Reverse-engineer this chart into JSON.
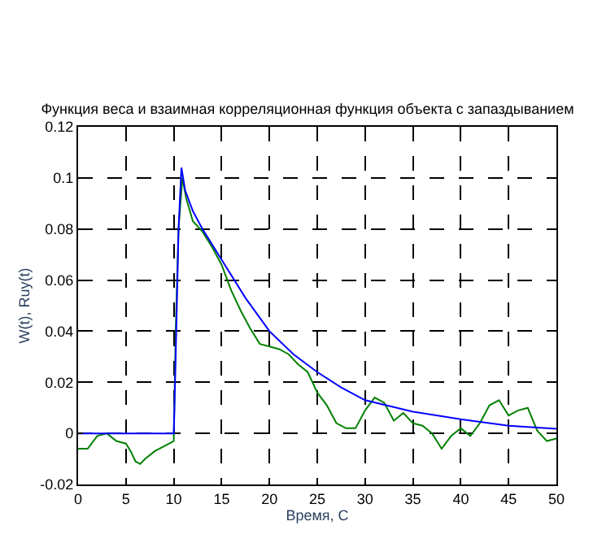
{
  "chart_data": {
    "type": "line",
    "title": "Функция веса и взаимная корреляционная функция объекта с запаздыванием",
    "xlabel": "Время, С",
    "ylabel": "W(t), Ruy(t)",
    "xlim": [
      0,
      50
    ],
    "xticks": [
      0,
      5,
      10,
      15,
      20,
      25,
      30,
      35,
      40,
      45,
      50
    ],
    "ylim": [
      -0.02,
      0.12
    ],
    "yticks": [
      -0.02,
      0,
      0.02,
      0.04,
      0.06,
      0.08,
      0.1,
      0.12
    ],
    "grid": true,
    "line_style": "solid",
    "legend": false,
    "series": [
      {
        "color": "#008000",
        "x": [
          0,
          1,
          2,
          3,
          4,
          5,
          5.5,
          6,
          6.5,
          7,
          8,
          9,
          10,
          10.2,
          10.5,
          10.9,
          11.3,
          12,
          13,
          14,
          15,
          16,
          17,
          18,
          19,
          20,
          21,
          22,
          23,
          24,
          25,
          26,
          27,
          28,
          29,
          30,
          31,
          32,
          33,
          34,
          35,
          36,
          37,
          38,
          39,
          40,
          41,
          42,
          43,
          44,
          45,
          46,
          47,
          48,
          49,
          50
        ],
        "values": [
          -0.006,
          -0.006,
          -0.001,
          0,
          -0.003,
          -0.004,
          -0.007,
          -0.011,
          -0.012,
          -0.01,
          -0.007,
          -0.005,
          -0.003,
          0.04,
          0.08,
          0.1,
          0.092,
          0.083,
          0.079,
          0.073,
          0.066,
          0.056,
          0.048,
          0.041,
          0.035,
          0.034,
          0.033,
          0.031,
          0.027,
          0.024,
          0.016,
          0.011,
          0.004,
          0.002,
          0.002,
          0.009,
          0.014,
          0.012,
          0.005,
          0.008,
          0.004,
          0.003,
          0,
          -0.006,
          -0.001,
          0.002,
          -0.001,
          0.004,
          0.011,
          0.013,
          0.007,
          0.009,
          0.01,
          0.001,
          -0.003,
          -0.002
        ]
      },
      {
        "color": "#0000ff",
        "x": [
          0,
          10,
          10.2,
          10.5,
          10.8,
          11.2,
          12,
          13,
          15,
          17.5,
          20,
          22.5,
          25,
          27.5,
          30,
          35,
          40,
          45,
          50
        ],
        "values": [
          0,
          0,
          0.03,
          0.08,
          0.104,
          0.095,
          0.087,
          0.08,
          0.068,
          0.053,
          0.04,
          0.031,
          0.024,
          0.018,
          0.013,
          0.0085,
          0.0055,
          0.003,
          0.0018
        ]
      }
    ]
  }
}
